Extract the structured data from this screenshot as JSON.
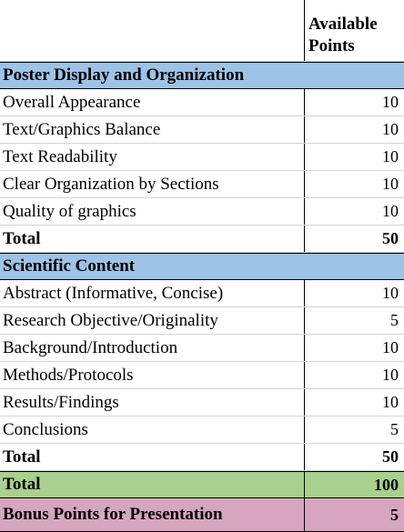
{
  "header": {
    "column_label": "Available Points"
  },
  "sections": [
    {
      "title": "Poster Display and Organization",
      "items": [
        {
          "label": "Overall Appearance",
          "points": 10
        },
        {
          "label": "Text/Graphics Balance",
          "points": 10
        },
        {
          "label": "Text Readability",
          "points": 10
        },
        {
          "label": "Clear Organization by Sections",
          "points": 10
        },
        {
          "label": "Quality of graphics",
          "points": 10
        }
      ],
      "total": {
        "label": "Total",
        "points": 50
      }
    },
    {
      "title": "Scientific Content",
      "items": [
        {
          "label": "Abstract (Informative, Concise)",
          "points": 10
        },
        {
          "label": "Research Objective/Originality",
          "points": 5
        },
        {
          "label": "Background/Introduction",
          "points": 10
        },
        {
          "label": "Methods/Protocols",
          "points": 10
        },
        {
          "label": "Results/Findings",
          "points": 10
        },
        {
          "label": "Conclusions",
          "points": 5
        }
      ],
      "total": {
        "label": "Total",
        "points": 50
      }
    }
  ],
  "grand_total": {
    "label": "Total",
    "points": 100
  },
  "bonus": {
    "label": "Bonus Points for Presentation",
    "points": 5
  }
}
